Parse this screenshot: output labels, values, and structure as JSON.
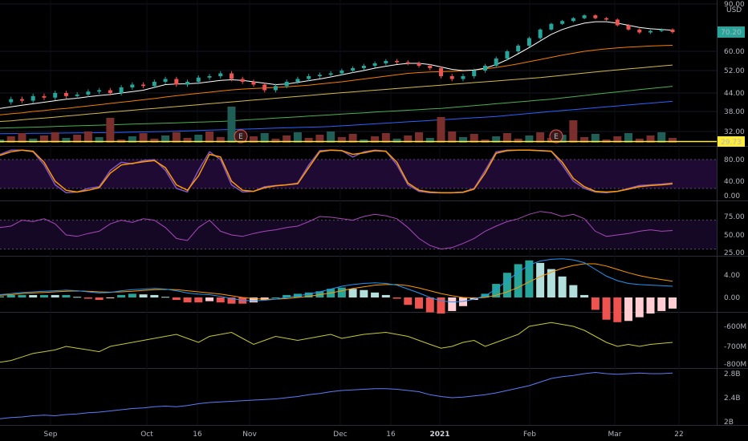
{
  "chart_data": {
    "type": "line",
    "title": "",
    "currency": "USD",
    "x_ticks": [
      "Sep",
      "Oct",
      "16",
      "Nov",
      "Dec",
      "16",
      "2021",
      "Feb",
      "Mar",
      "22"
    ],
    "earnings_marker": "E",
    "colors": {
      "background": "#000000",
      "up": "#26a69a",
      "down": "#ef5350",
      "ma_fast": "#ffffff",
      "ma_mid": "#f57c00",
      "ma_slow": "#d4b94a",
      "ma_100": "#4caf50",
      "ma_200": "#2962ff",
      "stoch_k": "#7e57c2",
      "stoch_d": "#ff9800",
      "rsi": "#ab47bc",
      "macd": "#2196f3",
      "signal": "#ff9800",
      "obv_yellow": "#c8c832",
      "obv_blue": "#5c7cfa",
      "price_label": "#26a69a",
      "level_line": "#ffeb3b"
    },
    "panes": [
      {
        "name": "price",
        "y_ticks": [
          "90.00",
          "60.00",
          "52.00",
          "44.00",
          "38.00",
          "32.00"
        ],
        "y_ticks_values": [
          90,
          60,
          52,
          44,
          38,
          32
        ],
        "last_price": "70.20",
        "level_label": "29.73",
        "currency_label": "USD",
        "price_path_values": [
          41,
          42,
          41.5,
          43,
          42.5,
          44,
          43,
          43.5,
          44.5,
          45,
          44,
          46,
          47,
          46.5,
          48,
          49,
          47,
          48,
          49.5,
          50,
          51,
          49,
          48,
          47,
          45,
          46.5,
          48,
          49,
          50,
          50.5,
          51,
          52,
          53,
          54,
          55,
          56,
          55.5,
          55,
          54,
          53,
          50,
          49,
          50,
          52,
          54,
          57,
          60,
          63,
          67,
          72,
          76,
          78,
          80,
          82,
          80,
          79,
          75,
          72,
          70,
          71,
          72,
          70.2
        ],
        "ma_fast_values": [
          39,
          39.5,
          40,
          40.5,
          41,
          41.5,
          42,
          42.3,
          42.8,
          43.2,
          43.5,
          44,
          44.5,
          45,
          46,
          47,
          47.2,
          47.3,
          47.5,
          48,
          48.5,
          48.7,
          48.5,
          48,
          47.5,
          47,
          47.2,
          47.8,
          48.4,
          49,
          49.7,
          50.5,
          51.3,
          52,
          53,
          53.8,
          54.5,
          55,
          55,
          54.5,
          53.5,
          52.5,
          52,
          52.2,
          53,
          54.5,
          56.5,
          59,
          62,
          65.5,
          69,
          72,
          74.5,
          76.5,
          77.5,
          77.5,
          76.5,
          75,
          73.5,
          72.5,
          72,
          71.5
        ],
        "ma_mid_values": [
          37,
          37.3,
          37.6,
          38,
          38.3,
          38.7,
          39,
          39.4,
          39.8,
          40.2,
          40.6,
          41,
          41.4,
          41.8,
          42.2,
          42.7,
          43.1,
          43.5,
          43.9,
          44.3,
          44.7,
          45.1,
          45.4,
          45.6,
          45.8,
          46,
          46.2,
          46.5,
          46.8,
          47.2,
          47.6,
          48,
          48.5,
          49,
          49.5,
          50,
          50.5,
          51,
          51.3,
          51.5,
          51.6,
          51.7,
          51.9,
          52.2,
          52.7,
          53.3,
          54,
          54.8,
          55.7,
          56.6,
          57.5,
          58.4,
          59.2,
          60,
          60.7,
          61.3,
          61.8,
          62.2,
          62.5,
          62.8,
          63,
          63.2
        ],
        "ma_slow_values": [
          35,
          35.2,
          35.5,
          35.8,
          36,
          36.3,
          36.6,
          36.9,
          37.2,
          37.5,
          37.8,
          38.1,
          38.4,
          38.7,
          39,
          39.3,
          39.6,
          39.9,
          40.2,
          40.5,
          40.8,
          41.1,
          41.4,
          41.7,
          42,
          42.3,
          42.6,
          42.9,
          43.2,
          43.5,
          43.8,
          44.1,
          44.4,
          44.7,
          45,
          45.3,
          45.6,
          45.9,
          46.2,
          46.5,
          46.8,
          47.1,
          47.4,
          47.7,
          48,
          48.3,
          48.6,
          48.9,
          49.2,
          49.5,
          49.9,
          50.3,
          50.7,
          51.1,
          51.5,
          51.9,
          52.3,
          52.7,
          53.1,
          53.5,
          53.9,
          54.3
        ],
        "ma_100_values": [
          33,
          33.1,
          33.2,
          33.3,
          33.4,
          33.5,
          33.6,
          33.7,
          33.8,
          33.9,
          34,
          34.1,
          34.2,
          34.3,
          34.4,
          34.5,
          34.6,
          34.7,
          34.8,
          34.9,
          35,
          35.2,
          35.4,
          35.6,
          35.8,
          36,
          36.2,
          36.4,
          36.6,
          36.8,
          37,
          37.2,
          37.4,
          37.6,
          37.8,
          38,
          38.2,
          38.4,
          38.6,
          38.8,
          39,
          39.3,
          39.6,
          39.9,
          40.2,
          40.5,
          40.8,
          41.1,
          41.4,
          41.7,
          42,
          42.4,
          42.8,
          43.2,
          43.6,
          44,
          44.4,
          44.8,
          45.2,
          45.6,
          46,
          46.4
        ],
        "ma_200_values": [
          31,
          31.05,
          31.1,
          31.15,
          31.2,
          31.25,
          31.3,
          31.35,
          31.4,
          31.45,
          31.5,
          31.6,
          31.7,
          31.8,
          31.9,
          32,
          32.1,
          32.2,
          32.3,
          32.4,
          32.5,
          32.6,
          32.7,
          32.8,
          32.9,
          33,
          33.1,
          33.2,
          33.3,
          33.4,
          33.5,
          33.7,
          33.9,
          34.1,
          34.3,
          34.5,
          34.7,
          34.9,
          35.1,
          35.3,
          35.5,
          35.7,
          35.9,
          36.1,
          36.3,
          36.5,
          36.8,
          37.1,
          37.4,
          37.7,
          38,
          38.3,
          38.6,
          38.9,
          39.2,
          39.5,
          39.8,
          40.1,
          40.4,
          40.7,
          41,
          41.3
        ]
      },
      {
        "name": "stochastic",
        "y_ticks": [
          "80.00",
          "40.00",
          "0.00"
        ],
        "y_ticks_values": [
          80,
          40,
          0
        ],
        "band": [
          20,
          80
        ],
        "k_values": [
          90,
          98,
          98,
          95,
          70,
          30,
          8,
          10,
          20,
          25,
          60,
          75,
          72,
          78,
          80,
          60,
          20,
          10,
          60,
          95,
          80,
          30,
          10,
          12,
          25,
          28,
          30,
          35,
          70,
          97,
          98,
          97,
          85,
          95,
          98,
          96,
          70,
          30,
          12,
          8,
          8,
          8,
          10,
          20,
          60,
          95,
          98,
          98,
          98,
          97,
          96,
          70,
          40,
          20,
          10,
          8,
          12,
          20,
          28,
          30,
          32,
          35
        ],
        "d_values": [
          88,
          95,
          98,
          96,
          75,
          40,
          15,
          10,
          15,
          22,
          55,
          70,
          73,
          76,
          78,
          65,
          30,
          15,
          50,
          90,
          85,
          40,
          15,
          12,
          22,
          27,
          30,
          33,
          65,
          95,
          98,
          97,
          90,
          93,
          97,
          96,
          75,
          35,
          15,
          10,
          8,
          8,
          9,
          18,
          55,
          92,
          97,
          98,
          98,
          97,
          96,
          75,
          45,
          25,
          12,
          10,
          12,
          18,
          25,
          28,
          30,
          33
        ]
      },
      {
        "name": "rsi",
        "y_ticks": [
          "75.00",
          "50.00",
          "25.00"
        ],
        "y_ticks_values": [
          75,
          50,
          25
        ],
        "band": [
          30,
          70
        ],
        "values": [
          60,
          62,
          70,
          68,
          72,
          65,
          50,
          48,
          52,
          55,
          65,
          70,
          67,
          72,
          70,
          60,
          45,
          42,
          60,
          70,
          55,
          50,
          48,
          52,
          55,
          57,
          60,
          62,
          68,
          75,
          74,
          72,
          70,
          75,
          78,
          76,
          72,
          60,
          45,
          35,
          30,
          32,
          38,
          45,
          55,
          62,
          68,
          72,
          78,
          82,
          80,
          75,
          78,
          72,
          55,
          48,
          50,
          52,
          55,
          57,
          55,
          56
        ]
      },
      {
        "name": "macd",
        "y_ticks": [
          "4.00",
          "0.00"
        ],
        "y_ticks_values": [
          4,
          0
        ],
        "macd_values": [
          0.5,
          0.7,
          0.9,
          1,
          1.1,
          1.2,
          1.3,
          1.2,
          1,
          0.8,
          0.9,
          1.2,
          1.4,
          1.5,
          1.6,
          1.5,
          1.2,
          0.8,
          0.6,
          0.5,
          0.2,
          -0.2,
          -0.5,
          -0.6,
          -0.5,
          -0.3,
          0,
          0.3,
          0.6,
          1,
          1.5,
          2,
          2.3,
          2.5,
          2.6,
          2.5,
          2.2,
          1.5,
          0.8,
          0,
          -0.6,
          -0.8,
          -0.7,
          -0.3,
          0.3,
          1.5,
          3,
          4.5,
          5.8,
          6.5,
          6.8,
          6.9,
          6.7,
          6.2,
          5,
          3.8,
          3,
          2.5,
          2.3,
          2.2,
          2.1,
          2
        ],
        "signal_values": [
          0.4,
          0.5,
          0.7,
          0.8,
          0.9,
          1,
          1.1,
          1.15,
          1.1,
          1,
          0.95,
          1,
          1.1,
          1.25,
          1.4,
          1.45,
          1.4,
          1.2,
          1,
          0.8,
          0.6,
          0.3,
          0,
          -0.2,
          -0.3,
          -0.3,
          -0.2,
          0,
          0.2,
          0.5,
          0.8,
          1.2,
          1.6,
          1.9,
          2.2,
          2.3,
          2.3,
          2.1,
          1.7,
          1.2,
          0.7,
          0.3,
          0,
          -0.1,
          0,
          0.4,
          1,
          1.8,
          2.8,
          3.7,
          4.5,
          5.2,
          5.7,
          6,
          6,
          5.6,
          5,
          4.4,
          3.9,
          3.5,
          3.2,
          2.9
        ]
      },
      {
        "name": "volume-flow",
        "y_ticks": [
          "-600M",
          "-700M",
          "-800M"
        ],
        "y_ticks_values": [
          -600,
          -700,
          -800
        ],
        "values": [
          -790,
          -780,
          -760,
          -740,
          -730,
          -720,
          -700,
          -710,
          -720,
          -730,
          -700,
          -690,
          -680,
          -670,
          -660,
          -650,
          -640,
          -660,
          -680,
          -650,
          -640,
          -630,
          -660,
          -690,
          -670,
          -650,
          -660,
          -670,
          -660,
          -650,
          -640,
          -660,
          -650,
          -640,
          -635,
          -630,
          -640,
          -650,
          -670,
          -690,
          -710,
          -700,
          -680,
          -670,
          -700,
          -680,
          -660,
          -640,
          -600,
          -590,
          -580,
          -590,
          -600,
          -620,
          -650,
          -680,
          -700,
          -690,
          -700,
          -690,
          -685,
          -680
        ]
      },
      {
        "name": "obv",
        "y_ticks": [
          "2.8B",
          "2.4B",
          "2B"
        ],
        "y_ticks_values": [
          2.8,
          2.4,
          2
        ],
        "values": [
          2.05,
          2.07,
          2.08,
          2.1,
          2.11,
          2.1,
          2.12,
          2.13,
          2.15,
          2.16,
          2.18,
          2.2,
          2.22,
          2.23,
          2.25,
          2.26,
          2.25,
          2.27,
          2.3,
          2.32,
          2.33,
          2.34,
          2.35,
          2.36,
          2.37,
          2.38,
          2.4,
          2.42,
          2.45,
          2.47,
          2.5,
          2.52,
          2.53,
          2.54,
          2.55,
          2.55,
          2.54,
          2.52,
          2.5,
          2.45,
          2.42,
          2.4,
          2.41,
          2.43,
          2.45,
          2.48,
          2.52,
          2.56,
          2.6,
          2.66,
          2.72,
          2.75,
          2.77,
          2.8,
          2.82,
          2.8,
          2.79,
          2.8,
          2.81,
          2.8,
          2.8,
          2.81
        ]
      }
    ]
  }
}
